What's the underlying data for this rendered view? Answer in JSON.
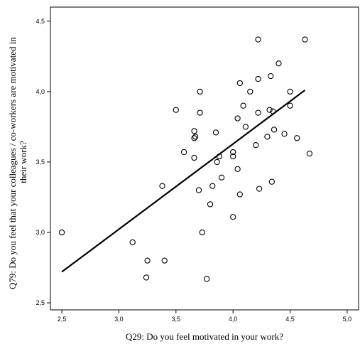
{
  "chart_data": {
    "type": "scatter",
    "title": "",
    "xlabel": "Q29: Do you feel motivated in your work?",
    "ylabel_lines": [
      "Q79: Do you feel that your colleagues / co-workers are motivated in",
      "their work?"
    ],
    "xlim": [
      2.4,
      5.1
    ],
    "ylim": [
      2.45,
      4.6
    ],
    "xticks": [
      2.5,
      3.0,
      3.5,
      4.0,
      4.5,
      5.0
    ],
    "xtick_labels": [
      "2,5",
      "3,0",
      "3,5",
      "4,0",
      "4,5",
      "5,0"
    ],
    "yticks": [
      2.5,
      3.0,
      3.5,
      4.0,
      4.5
    ],
    "ytick_labels": [
      "2,5",
      "3,0",
      "3,5",
      "4,0",
      "4,5"
    ],
    "grid": false,
    "marker": "open-circle",
    "fit_line": {
      "x": [
        2.5,
        4.63
      ],
      "y": [
        2.72,
        4.01
      ]
    },
    "points": [
      {
        "x": 2.5,
        "y": 3.0
      },
      {
        "x": 3.12,
        "y": 2.93
      },
      {
        "x": 3.25,
        "y": 2.8
      },
      {
        "x": 3.24,
        "y": 2.68
      },
      {
        "x": 3.4,
        "y": 2.8
      },
      {
        "x": 3.38,
        "y": 3.33
      },
      {
        "x": 3.5,
        "y": 3.87
      },
      {
        "x": 3.57,
        "y": 3.57
      },
      {
        "x": 3.66,
        "y": 3.67
      },
      {
        "x": 3.66,
        "y": 3.72
      },
      {
        "x": 3.67,
        "y": 3.68
      },
      {
        "x": 3.66,
        "y": 3.53
      },
      {
        "x": 3.71,
        "y": 4.0
      },
      {
        "x": 3.71,
        "y": 3.85
      },
      {
        "x": 3.7,
        "y": 3.3
      },
      {
        "x": 3.73,
        "y": 3.0
      },
      {
        "x": 3.77,
        "y": 2.67
      },
      {
        "x": 3.8,
        "y": 3.2
      },
      {
        "x": 3.82,
        "y": 3.33
      },
      {
        "x": 3.85,
        "y": 3.71
      },
      {
        "x": 3.86,
        "y": 3.5
      },
      {
        "x": 3.88,
        "y": 3.54
      },
      {
        "x": 3.9,
        "y": 3.39
      },
      {
        "x": 4.0,
        "y": 3.57
      },
      {
        "x": 4.0,
        "y": 3.54
      },
      {
        "x": 4.0,
        "y": 3.11
      },
      {
        "x": 4.04,
        "y": 3.81
      },
      {
        "x": 4.04,
        "y": 3.45
      },
      {
        "x": 4.06,
        "y": 4.06
      },
      {
        "x": 4.06,
        "y": 3.27
      },
      {
        "x": 4.09,
        "y": 3.9
      },
      {
        "x": 4.11,
        "y": 3.75
      },
      {
        "x": 4.15,
        "y": 4.0
      },
      {
        "x": 4.2,
        "y": 3.62
      },
      {
        "x": 4.22,
        "y": 3.85
      },
      {
        "x": 4.22,
        "y": 4.09
      },
      {
        "x": 4.23,
        "y": 3.31
      },
      {
        "x": 4.22,
        "y": 4.37
      },
      {
        "x": 4.3,
        "y": 3.68
      },
      {
        "x": 4.32,
        "y": 3.87
      },
      {
        "x": 4.33,
        "y": 4.11
      },
      {
        "x": 4.34,
        "y": 3.36
      },
      {
        "x": 4.35,
        "y": 3.86
      },
      {
        "x": 4.36,
        "y": 3.73
      },
      {
        "x": 4.4,
        "y": 4.2
      },
      {
        "x": 4.45,
        "y": 3.7
      },
      {
        "x": 4.5,
        "y": 4.0
      },
      {
        "x": 4.5,
        "y": 3.9
      },
      {
        "x": 4.56,
        "y": 3.67
      },
      {
        "x": 4.63,
        "y": 4.37
      },
      {
        "x": 4.67,
        "y": 3.56
      }
    ]
  }
}
